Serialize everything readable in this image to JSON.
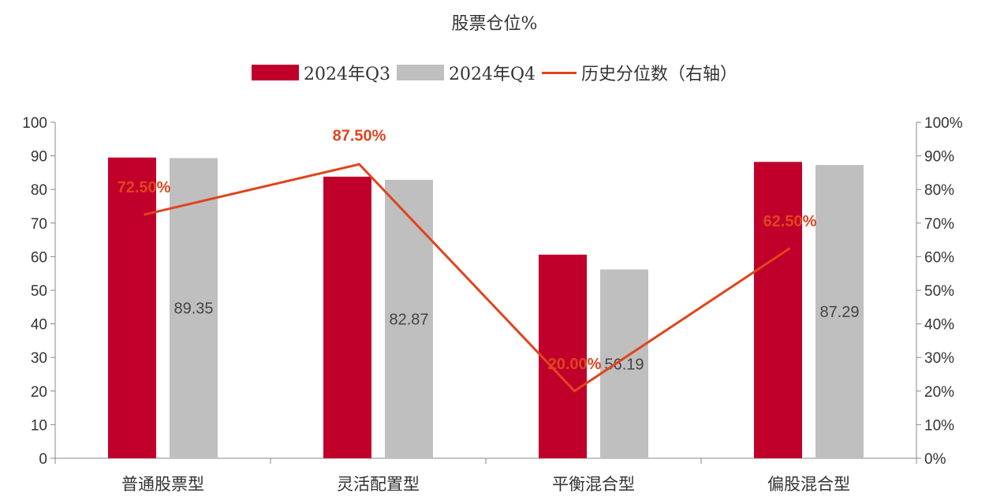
{
  "colors": {
    "q3": "#c0002b",
    "q4": "#bfbfbf",
    "line": "#e0441e",
    "axis": "#888888"
  },
  "chart_data": {
    "type": "bar",
    "title": "股票仓位%",
    "categories": [
      "普通股票型",
      "灵活配置型",
      "平衡混合型",
      "偏股混合型"
    ],
    "series": [
      {
        "name": "2024年Q3",
        "type": "bar",
        "axis": "left",
        "values": [
          89.5,
          83.8,
          60.6,
          88.2
        ]
      },
      {
        "name": "2024年Q4",
        "type": "bar",
        "axis": "left",
        "values": [
          89.35,
          82.87,
          56.19,
          87.29
        ],
        "labels": [
          "89.35",
          "82.87",
          "56.19",
          "87.29"
        ]
      },
      {
        "name": "历史分位数（右轴）",
        "type": "line",
        "axis": "right",
        "values": [
          72.5,
          87.5,
          20.0,
          62.5
        ],
        "labels": [
          "72.50%",
          "87.50%",
          "20.00%",
          "62.50%"
        ]
      }
    ],
    "ylim": [
      0,
      100
    ],
    "y_ticks": [
      "0",
      "10",
      "20",
      "30",
      "40",
      "50",
      "60",
      "70",
      "80",
      "90",
      "100"
    ],
    "y2lim": [
      0,
      100
    ],
    "y2_ticks": [
      "0%",
      "10%",
      "20%",
      "30%",
      "40%",
      "50%",
      "60%",
      "70%",
      "80%",
      "90%",
      "100%"
    ],
    "legend_position": "top",
    "grid": false
  }
}
